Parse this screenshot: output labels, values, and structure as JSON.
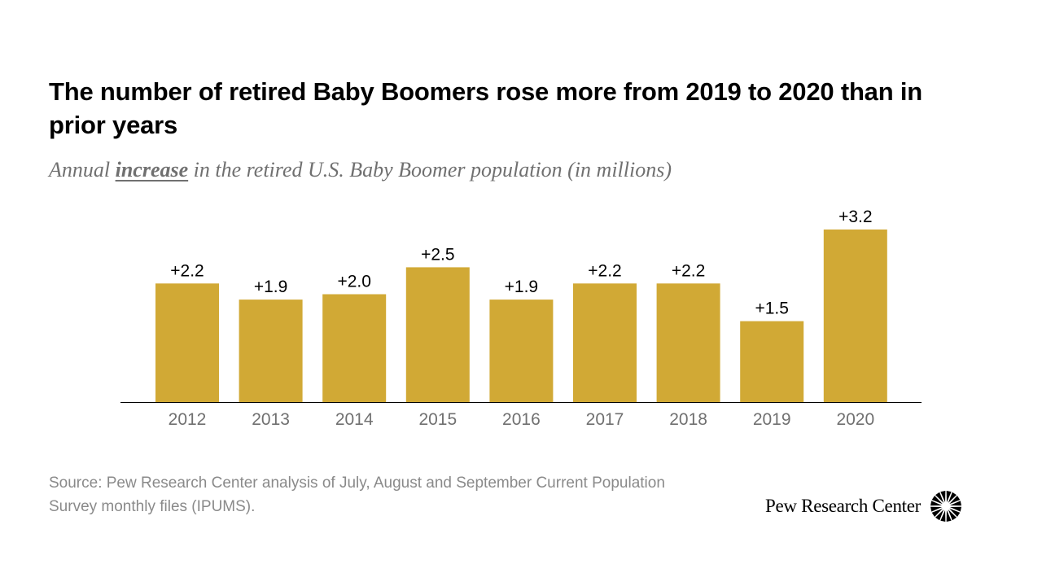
{
  "chart_data": {
    "type": "bar",
    "title": "The number of retired Baby Boomers rose more from 2019 to 2020 than in prior years",
    "subtitle": {
      "before": "Annual ",
      "emphasis": "increase",
      "after": " in the retired U.S. Baby Boomer population (in millions)"
    },
    "categories": [
      "2012",
      "2013",
      "2014",
      "2015",
      "2016",
      "2017",
      "2018",
      "2019",
      "2020"
    ],
    "values": [
      2.2,
      1.9,
      2.0,
      2.5,
      1.9,
      2.2,
      2.2,
      1.5,
      3.2
    ],
    "data_labels": [
      "+2.2",
      "+1.9",
      "+2.0",
      "+2.5",
      "+1.9",
      "+2.2",
      "+2.2",
      "+1.5",
      "+3.2"
    ],
    "xlabel": "",
    "ylabel": "",
    "ylim": [
      0,
      3.2
    ],
    "grid": false,
    "legend": "none",
    "bar_color": "#D1A935",
    "axis_color": "#000000",
    "label_color": "#000000",
    "tick_color": "#707070"
  },
  "footer": {
    "source": "Source: Pew Research Center analysis of July, August and September Current Population Survey monthly files (IPUMS).",
    "brand": "Pew Research Center"
  }
}
